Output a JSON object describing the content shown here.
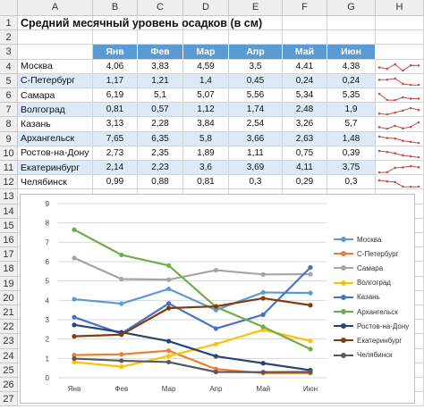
{
  "sheet": {
    "columns": [
      "A",
      "B",
      "C",
      "D",
      "E",
      "F",
      "G",
      "H"
    ],
    "rows": [
      "1",
      "2",
      "3",
      "4",
      "5",
      "6",
      "7",
      "8",
      "9",
      "10",
      "11",
      "12",
      "13",
      "14",
      "15",
      "16",
      "17",
      "18",
      "19",
      "20",
      "21",
      "22",
      "23",
      "24",
      "25",
      "26",
      "27"
    ],
    "title": "Средний месячный уровень осадков (в см)",
    "months": [
      "Янв",
      "Фев",
      "Мар",
      "Апр",
      "Май",
      "Июн"
    ],
    "cities": [
      {
        "name": "Москва",
        "values": [
          "4,06",
          "3,83",
          "4,59",
          "3,5",
          "4,41",
          "4,38"
        ]
      },
      {
        "name": "С-Петербург",
        "values": [
          "1,17",
          "1,21",
          "1,4",
          "0,45",
          "0,24",
          "0,24"
        ]
      },
      {
        "name": "Самара",
        "values": [
          "6,19",
          "5,1",
          "5,07",
          "5,56",
          "5,34",
          "5,35"
        ]
      },
      {
        "name": "Волгоград",
        "values": [
          "0,81",
          "0,57",
          "1,12",
          "1,74",
          "2,48",
          "1,9"
        ]
      },
      {
        "name": "Казань",
        "values": [
          "3,13",
          "2,28",
          "3,84",
          "2,54",
          "3,26",
          "5,7"
        ]
      },
      {
        "name": "Архангельск",
        "values": [
          "7,65",
          "6,35",
          "5,8",
          "3,66",
          "2,63",
          "1,48"
        ]
      },
      {
        "name": "Ростов-на-Дону",
        "values": [
          "2,73",
          "2,35",
          "1,89",
          "1,11",
          "0,75",
          "0,39"
        ]
      },
      {
        "name": "Екатеринбург",
        "values": [
          "2,14",
          "2,23",
          "3,6",
          "3,69",
          "4,11",
          "3,75"
        ]
      },
      {
        "name": "Челябинск",
        "values": [
          "0,99",
          "0,88",
          "0,81",
          "0,3",
          "0,29",
          "0,3"
        ]
      }
    ]
  },
  "colors": {
    "header_blue": "#5b9bd5",
    "band_blue": "#dde9f7",
    "sparkline": "#c0504d"
  },
  "chart_data": {
    "type": "line",
    "categories": [
      "Янв",
      "Фев",
      "Мар",
      "Апр",
      "Май",
      "Июн"
    ],
    "ylim": [
      0,
      9
    ],
    "yticks": [
      "0",
      "1",
      "2",
      "3",
      "4",
      "5",
      "6",
      "7",
      "8",
      "9"
    ],
    "grid": true,
    "legend_position": "right",
    "series": [
      {
        "name": "Москва",
        "color": "#5b9bd5",
        "values": [
          4.06,
          3.83,
          4.59,
          3.5,
          4.41,
          4.38
        ]
      },
      {
        "name": "С-Петербург",
        "color": "#ed7d31",
        "values": [
          1.17,
          1.21,
          1.4,
          0.45,
          0.24,
          0.24
        ]
      },
      {
        "name": "Самара",
        "color": "#a5a5a5",
        "values": [
          6.19,
          5.1,
          5.07,
          5.56,
          5.34,
          5.35
        ]
      },
      {
        "name": "Волгоград",
        "color": "#ffc000",
        "values": [
          0.81,
          0.57,
          1.12,
          1.74,
          2.48,
          1.9
        ]
      },
      {
        "name": "Казань",
        "color": "#4472c4",
        "values": [
          3.13,
          2.28,
          3.84,
          2.54,
          3.26,
          5.7
        ]
      },
      {
        "name": "Архангельск",
        "color": "#70ad47",
        "values": [
          7.65,
          6.35,
          5.8,
          3.66,
          2.63,
          1.48
        ]
      },
      {
        "name": "Ростов-на-Дону",
        "color": "#264478",
        "values": [
          2.73,
          2.35,
          1.89,
          1.11,
          0.75,
          0.39
        ]
      },
      {
        "name": "Екатеринбург",
        "color": "#843c0c",
        "values": [
          2.14,
          2.23,
          3.6,
          3.69,
          4.11,
          3.75
        ]
      },
      {
        "name": "Челябинск",
        "color": "#595959",
        "values": [
          0.99,
          0.88,
          0.81,
          0.3,
          0.29,
          0.3
        ]
      }
    ]
  }
}
